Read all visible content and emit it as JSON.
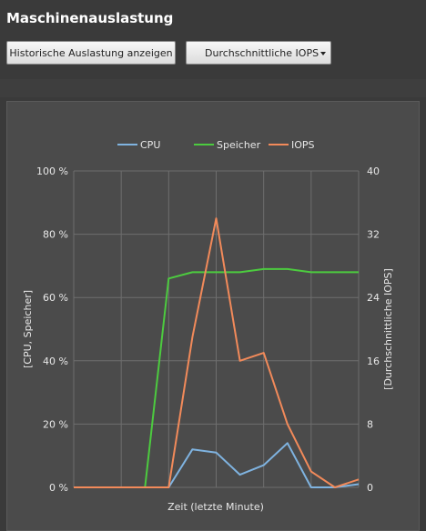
{
  "title": "Maschinenauslastung",
  "toolbar": {
    "historic_button": "Historische Auslastung anzeigen",
    "metric_select": {
      "selected": "Durchschnittliche IOPS"
    }
  },
  "colors": {
    "cpu": "#7fb3e0",
    "storage": "#4ccb3f",
    "iops": "#f28a5a",
    "panel": "#4b4b4b",
    "grid": "#6e6e6e"
  },
  "chart_data": {
    "type": "line",
    "legend": [
      "CPU",
      "Speicher",
      "IOPS"
    ],
    "legend_position": "top-center",
    "grid": true,
    "xlabel": "Zeit (letzte Minute)",
    "ylabel_left": "[CPU, Speicher]",
    "ylabel_right": "[Durchschnittliche IOPS]",
    "ylim_left": [
      0,
      100
    ],
    "ylim_right": [
      0,
      40
    ],
    "left_ticks": [
      "0 %",
      "20 %",
      "40 %",
      "60 %",
      "80 %",
      "100 %"
    ],
    "right_ticks": [
      "0",
      "8",
      "16",
      "24",
      "32",
      "40"
    ],
    "x": [
      0,
      1,
      2,
      3,
      4,
      5,
      6,
      7,
      8,
      9,
      10,
      11,
      12
    ],
    "series": [
      {
        "name": "CPU",
        "axis": "left",
        "values": [
          0,
          0,
          0,
          0,
          0,
          12,
          11,
          4,
          7,
          14,
          0,
          0,
          1
        ]
      },
      {
        "name": "Speicher",
        "axis": "left",
        "values": [
          0,
          0,
          0,
          0,
          66,
          68,
          68,
          68,
          69,
          69,
          68,
          68,
          68
        ]
      },
      {
        "name": "IOPS",
        "axis": "right",
        "values": [
          0,
          0,
          0,
          0,
          0,
          19,
          34,
          16,
          17,
          8,
          2,
          0,
          1
        ]
      }
    ]
  }
}
